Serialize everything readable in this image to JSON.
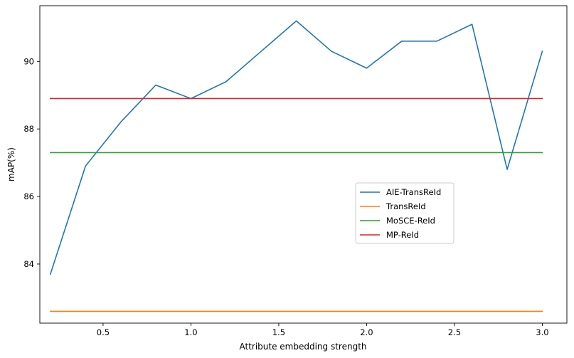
{
  "chart_data": {
    "type": "line",
    "xlabel": "Attribute embedding strength",
    "ylabel": "mAP(%)",
    "xlim": [
      0.14,
      3.14
    ],
    "ylim": [
      82.25,
      91.65
    ],
    "xticks": [
      0.5,
      1.0,
      1.5,
      2.0,
      2.5,
      3.0
    ],
    "xtick_labels": [
      "0.5",
      "1.0",
      "1.5",
      "2.0",
      "2.5",
      "3.0"
    ],
    "yticks": [
      84,
      86,
      88,
      90
    ],
    "ytick_labels": [
      "84",
      "86",
      "88",
      "90"
    ],
    "grid": false,
    "legend_position": "center-right",
    "series": [
      {
        "name": "AIE-TransReId",
        "color": "#1f77b4",
        "x": [
          0.2,
          0.4,
          0.6,
          0.8,
          1.0,
          1.2,
          1.4,
          1.6,
          1.8,
          2.0,
          2.2,
          2.4,
          2.6,
          2.8,
          3.0
        ],
        "y": [
          83.7,
          86.9,
          88.2,
          89.3,
          88.9,
          89.4,
          90.3,
          91.2,
          90.3,
          89.8,
          90.6,
          90.6,
          91.1,
          86.8,
          90.3
        ]
      },
      {
        "name": "TransReId",
        "color": "#ff7f0e",
        "x": [
          0.2,
          3.0
        ],
        "y": [
          82.6,
          82.6
        ]
      },
      {
        "name": "MoSCE-ReId",
        "color": "#2ca02c",
        "x": [
          0.2,
          3.0
        ],
        "y": [
          87.3,
          87.3
        ]
      },
      {
        "name": "MP-ReId",
        "color": "#d62728",
        "x": [
          0.2,
          3.0
        ],
        "y": [
          88.9,
          88.9
        ]
      }
    ]
  }
}
